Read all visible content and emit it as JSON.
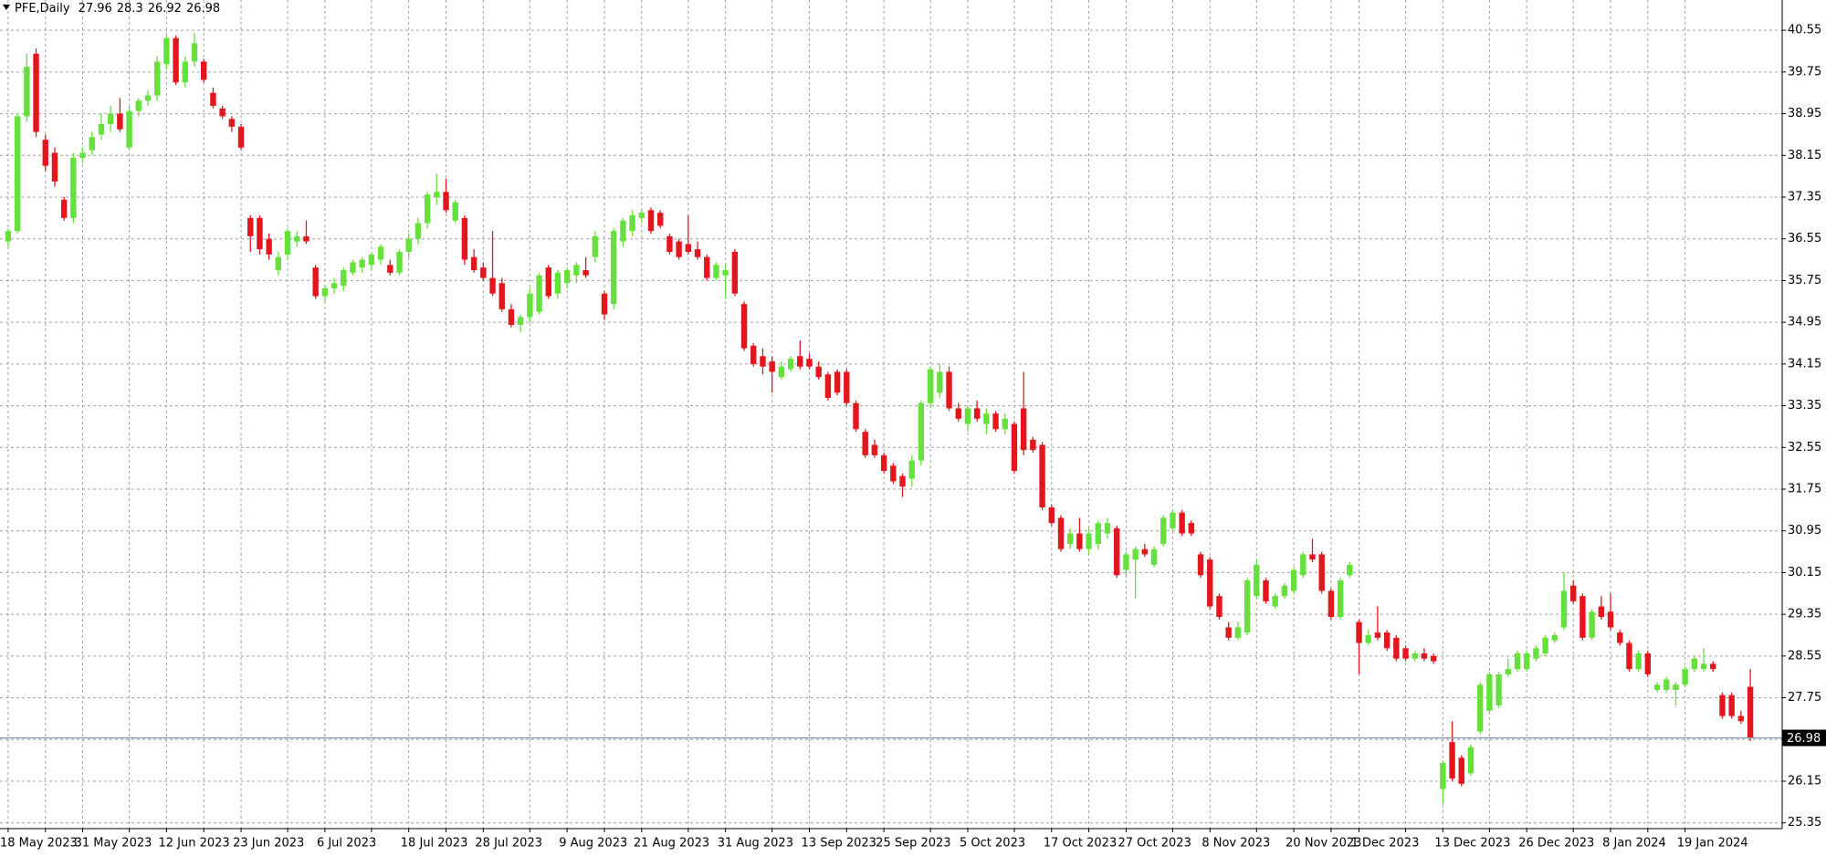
{
  "chart_data": {
    "type": "candlestick",
    "title": "PFE,Daily",
    "ylim": [
      25.24,
      41.13
    ],
    "yticks": [
      25.35,
      26.15,
      26.95,
      27.75,
      28.55,
      29.35,
      30.15,
      30.95,
      31.75,
      32.55,
      33.35,
      34.15,
      34.95,
      35.75,
      36.55,
      37.35,
      38.15,
      38.95,
      39.75,
      40.55
    ],
    "grid": true,
    "bull_color": "#66e03c",
    "bear_color": "#e3161e",
    "last_line_color": "#8a9ab0",
    "categories": [
      "18 May 2023",
      null,
      null,
      null,
      null,
      null,
      null,
      null,
      "31 May 2023",
      null,
      null,
      null,
      null,
      null,
      null,
      null,
      null,
      "12 Jun 2023",
      null,
      null,
      null,
      null,
      null,
      null,
      null,
      "23 Jun 2023",
      null,
      null,
      null,
      null,
      null,
      null,
      null,
      null,
      "6 Jul 2023",
      null,
      null,
      null,
      null,
      null,
      null,
      null,
      null,
      "18 Jul 2023",
      null,
      null,
      null,
      null,
      null,
      null,
      null,
      "28 Jul 2023",
      null,
      null,
      null,
      null,
      null,
      null,
      null,
      null,
      "9 Aug 2023",
      null,
      null,
      null,
      null,
      null,
      null,
      null,
      "21 Aug 2023",
      null,
      null,
      null,
      null,
      null,
      null,
      null,
      null,
      "31 Aug 2023",
      null,
      null,
      null,
      null,
      null,
      null,
      null,
      null,
      "13 Sep 2023",
      null,
      null,
      null,
      null,
      null,
      null,
      null,
      "25 Sep 2023",
      null,
      null,
      null,
      null,
      null,
      null,
      null,
      null,
      "5 Oct 2023",
      null,
      null,
      null,
      null,
      null,
      null,
      null,
      null,
      "17 Oct 2023",
      null,
      null,
      null,
      null,
      null,
      null,
      null,
      "27 Oct 2023",
      null,
      null,
      null,
      null,
      null,
      null,
      null,
      null,
      "8 Nov 2023",
      null,
      null,
      null,
      null,
      null,
      null,
      null,
      null,
      "20 Nov 2023",
      null,
      null,
      null,
      null,
      null,
      null,
      "1 Dec 2023",
      null,
      null,
      null,
      null,
      null,
      null,
      null,
      null,
      "13 Dec 2023",
      null,
      null,
      null,
      null,
      null,
      null,
      null,
      null,
      "26 Dec 2023",
      null,
      null,
      null,
      null,
      null,
      null,
      null,
      null,
      "8 Jan 2024",
      null,
      null,
      null,
      null,
      null,
      null,
      null,
      "19 Jan 2024",
      null,
      null,
      null,
      null,
      null,
      null,
      null
    ],
    "candles": [
      [
        36.5,
        36.75,
        36.4,
        36.7
      ],
      [
        36.7,
        38.95,
        36.65,
        38.9
      ],
      [
        38.9,
        40.1,
        38.8,
        39.85
      ],
      [
        40.1,
        40.2,
        38.5,
        38.6
      ],
      [
        38.45,
        38.55,
        37.85,
        37.95
      ],
      [
        38.2,
        38.3,
        37.55,
        37.65
      ],
      [
        37.3,
        37.35,
        36.9,
        36.95
      ],
      [
        36.95,
        38.2,
        36.85,
        38.1
      ],
      [
        38.1,
        38.3,
        38.0,
        38.2
      ],
      [
        38.25,
        38.6,
        38.15,
        38.5
      ],
      [
        38.55,
        38.95,
        38.45,
        38.75
      ],
      [
        38.75,
        39.1,
        38.6,
        38.95
      ],
      [
        38.95,
        39.25,
        38.6,
        38.65
      ],
      [
        38.3,
        39.1,
        38.25,
        39.0
      ],
      [
        39.0,
        39.25,
        38.9,
        39.2
      ],
      [
        39.2,
        39.4,
        39.1,
        39.3
      ],
      [
        39.3,
        40.05,
        39.2,
        39.95
      ],
      [
        39.9,
        40.45,
        39.8,
        40.4
      ],
      [
        40.4,
        40.45,
        39.5,
        39.55
      ],
      [
        39.55,
        40.05,
        39.45,
        39.95
      ],
      [
        39.95,
        40.5,
        39.85,
        40.3
      ],
      [
        39.95,
        40.0,
        39.55,
        39.6
      ],
      [
        39.35,
        39.45,
        39.05,
        39.1
      ],
      [
        39.05,
        39.1,
        38.85,
        38.9
      ],
      [
        38.85,
        38.9,
        38.6,
        38.7
      ],
      [
        38.7,
        38.75,
        38.25,
        38.3
      ],
      [
        36.95,
        37.0,
        36.3,
        36.6
      ],
      [
        36.95,
        37.0,
        36.25,
        36.35
      ],
      [
        36.55,
        36.65,
        36.15,
        36.25
      ],
      [
        35.95,
        36.3,
        35.85,
        36.2
      ],
      [
        36.25,
        36.75,
        36.15,
        36.7
      ],
      [
        36.5,
        36.7,
        36.4,
        36.6
      ],
      [
        36.6,
        36.9,
        36.45,
        36.5
      ],
      [
        36.0,
        36.05,
        35.4,
        35.45
      ],
      [
        35.45,
        35.65,
        35.35,
        35.6
      ],
      [
        35.6,
        35.8,
        35.5,
        35.7
      ],
      [
        35.65,
        36.0,
        35.55,
        35.95
      ],
      [
        35.9,
        36.15,
        35.85,
        36.1
      ],
      [
        36.0,
        36.2,
        35.9,
        36.15
      ],
      [
        36.05,
        36.3,
        35.95,
        36.25
      ],
      [
        36.15,
        36.45,
        36.05,
        36.4
      ],
      [
        36.05,
        36.15,
        35.85,
        35.9
      ],
      [
        35.9,
        36.35,
        35.85,
        36.3
      ],
      [
        36.3,
        36.65,
        36.2,
        36.55
      ],
      [
        36.55,
        36.95,
        36.45,
        36.85
      ],
      [
        36.85,
        37.45,
        36.75,
        37.4
      ],
      [
        37.35,
        37.8,
        37.2,
        37.45
      ],
      [
        37.45,
        37.7,
        37.05,
        37.1
      ],
      [
        36.9,
        37.3,
        36.85,
        37.25
      ],
      [
        36.95,
        37.0,
        36.05,
        36.15
      ],
      [
        36.2,
        36.35,
        35.9,
        35.95
      ],
      [
        36.0,
        36.1,
        35.75,
        35.8
      ],
      [
        35.8,
        36.7,
        35.45,
        35.5
      ],
      [
        35.7,
        35.8,
        35.15,
        35.2
      ],
      [
        35.2,
        35.3,
        34.85,
        34.9
      ],
      [
        34.9,
        35.1,
        34.75,
        35.05
      ],
      [
        35.05,
        35.6,
        34.95,
        35.5
      ],
      [
        35.15,
        35.9,
        35.1,
        35.85
      ],
      [
        36.0,
        36.05,
        35.4,
        35.45
      ],
      [
        35.5,
        35.95,
        35.4,
        35.9
      ],
      [
        35.7,
        36.0,
        35.6,
        35.95
      ],
      [
        35.85,
        36.1,
        35.7,
        36.05
      ],
      [
        35.95,
        36.2,
        35.8,
        35.85
      ],
      [
        36.2,
        36.7,
        36.1,
        36.6
      ],
      [
        35.5,
        35.55,
        35.0,
        35.1
      ],
      [
        35.3,
        36.75,
        35.2,
        36.7
      ],
      [
        36.5,
        36.95,
        36.4,
        36.9
      ],
      [
        36.7,
        37.1,
        36.6,
        37.0
      ],
      [
        36.95,
        37.1,
        36.85,
        37.05
      ],
      [
        37.1,
        37.15,
        36.65,
        36.7
      ],
      [
        37.05,
        37.1,
        36.75,
        36.8
      ],
      [
        36.6,
        36.65,
        36.25,
        36.3
      ],
      [
        36.5,
        36.55,
        36.15,
        36.2
      ],
      [
        36.45,
        37.0,
        36.25,
        36.3
      ],
      [
        36.35,
        36.5,
        36.15,
        36.2
      ],
      [
        36.2,
        36.25,
        35.75,
        35.8
      ],
      [
        35.8,
        36.1,
        35.75,
        36.05
      ],
      [
        35.85,
        36.05,
        35.4,
        35.95
      ],
      [
        36.3,
        36.35,
        35.45,
        35.5
      ],
      [
        35.3,
        35.35,
        34.4,
        34.45
      ],
      [
        34.5,
        34.55,
        34.1,
        34.15
      ],
      [
        34.3,
        34.45,
        33.95,
        34.1
      ],
      [
        34.2,
        34.3,
        33.6,
        34.0
      ],
      [
        33.9,
        34.2,
        33.85,
        34.1
      ],
      [
        34.05,
        34.3,
        34.0,
        34.25
      ],
      [
        34.3,
        34.6,
        34.05,
        34.1
      ],
      [
        34.25,
        34.35,
        34.05,
        34.1
      ],
      [
        34.1,
        34.2,
        33.85,
        33.9
      ],
      [
        33.95,
        34.0,
        33.45,
        33.5
      ],
      [
        34.0,
        34.05,
        33.55,
        33.6
      ],
      [
        34.0,
        34.05,
        33.35,
        33.4
      ],
      [
        33.4,
        33.45,
        32.85,
        32.9
      ],
      [
        32.85,
        32.9,
        32.35,
        32.4
      ],
      [
        32.6,
        32.7,
        32.35,
        32.4
      ],
      [
        32.4,
        32.45,
        32.05,
        32.1
      ],
      [
        32.2,
        32.25,
        31.85,
        31.9
      ],
      [
        32.0,
        32.05,
        31.6,
        31.8
      ],
      [
        31.95,
        32.4,
        31.8,
        32.3
      ],
      [
        32.3,
        33.45,
        32.2,
        33.4
      ],
      [
        33.4,
        34.1,
        33.3,
        34.05
      ],
      [
        33.6,
        34.15,
        33.5,
        34.0
      ],
      [
        34.0,
        34.1,
        33.25,
        33.3
      ],
      [
        33.3,
        33.4,
        33.05,
        33.1
      ],
      [
        33.0,
        33.35,
        32.85,
        33.3
      ],
      [
        33.3,
        33.45,
        33.05,
        33.1
      ],
      [
        33.0,
        33.3,
        32.8,
        33.2
      ],
      [
        33.2,
        33.25,
        32.85,
        32.9
      ],
      [
        32.9,
        33.2,
        32.8,
        33.1
      ],
      [
        33.0,
        33.05,
        32.05,
        32.1
      ],
      [
        33.3,
        34.0,
        32.4,
        32.5
      ],
      [
        32.7,
        32.75,
        32.45,
        32.5
      ],
      [
        32.6,
        32.65,
        31.35,
        31.4
      ],
      [
        31.4,
        31.45,
        31.05,
        31.1
      ],
      [
        31.2,
        31.25,
        30.55,
        30.6
      ],
      [
        30.7,
        31.0,
        30.6,
        30.9
      ],
      [
        30.9,
        31.2,
        30.55,
        30.6
      ],
      [
        30.6,
        31.0,
        30.5,
        30.9
      ],
      [
        30.7,
        31.15,
        30.6,
        31.1
      ],
      [
        30.9,
        31.2,
        30.8,
        31.1
      ],
      [
        31.0,
        31.05,
        30.05,
        30.1
      ],
      [
        30.2,
        30.55,
        30.1,
        30.5
      ],
      [
        30.4,
        30.65,
        29.65,
        30.6
      ],
      [
        30.6,
        30.7,
        30.45,
        30.5
      ],
      [
        30.3,
        30.65,
        30.25,
        30.6
      ],
      [
        30.7,
        31.25,
        30.65,
        31.2
      ],
      [
        31.0,
        31.35,
        30.95,
        31.3
      ],
      [
        31.3,
        31.35,
        30.85,
        30.9
      ],
      [
        31.1,
        31.15,
        30.85,
        30.9
      ],
      [
        30.5,
        30.55,
        30.05,
        30.1
      ],
      [
        30.4,
        30.45,
        29.45,
        29.5
      ],
      [
        29.7,
        29.75,
        29.25,
        29.3
      ],
      [
        29.1,
        29.2,
        28.85,
        28.9
      ],
      [
        28.9,
        29.2,
        28.85,
        29.1
      ],
      [
        29.0,
        30.05,
        28.95,
        30.0
      ],
      [
        29.7,
        30.4,
        29.65,
        30.3
      ],
      [
        30.0,
        30.05,
        29.55,
        29.6
      ],
      [
        29.5,
        29.75,
        29.45,
        29.7
      ],
      [
        29.7,
        29.95,
        29.65,
        29.9
      ],
      [
        29.8,
        30.25,
        29.75,
        30.2
      ],
      [
        30.1,
        30.55,
        30.05,
        30.5
      ],
      [
        30.5,
        30.8,
        30.35,
        30.4
      ],
      [
        30.5,
        30.55,
        29.75,
        29.8
      ],
      [
        29.8,
        29.85,
        29.25,
        29.3
      ],
      [
        29.3,
        30.05,
        29.25,
        30.0
      ],
      [
        30.1,
        30.35,
        30.05,
        30.3
      ],
      [
        29.2,
        29.25,
        28.2,
        28.8
      ],
      [
        28.8,
        29.05,
        28.75,
        28.95
      ],
      [
        29.0,
        29.5,
        28.85,
        28.9
      ],
      [
        29.0,
        29.05,
        28.65,
        28.7
      ],
      [
        28.9,
        28.95,
        28.45,
        28.5
      ],
      [
        28.7,
        28.75,
        28.45,
        28.5
      ],
      [
        28.5,
        28.65,
        28.45,
        28.6
      ],
      [
        28.6,
        28.7,
        28.45,
        28.5
      ],
      [
        28.55,
        28.6,
        28.4,
        28.45
      ],
      [
        26.0,
        26.55,
        25.7,
        26.5
      ],
      [
        26.9,
        27.3,
        26.15,
        26.2
      ],
      [
        26.6,
        26.65,
        26.05,
        26.1
      ],
      [
        26.3,
        26.85,
        26.25,
        26.8
      ],
      [
        27.1,
        28.05,
        27.05,
        28.0
      ],
      [
        27.5,
        28.25,
        27.45,
        28.2
      ],
      [
        27.6,
        28.25,
        27.55,
        28.2
      ],
      [
        28.2,
        28.5,
        28.15,
        28.3
      ],
      [
        28.3,
        28.65,
        28.25,
        28.6
      ],
      [
        28.3,
        28.65,
        28.25,
        28.6
      ],
      [
        28.5,
        28.75,
        28.45,
        28.7
      ],
      [
        28.6,
        28.95,
        28.55,
        28.9
      ],
      [
        28.85,
        29.0,
        28.8,
        28.95
      ],
      [
        29.1,
        30.15,
        29.05,
        29.8
      ],
      [
        29.9,
        30.0,
        29.55,
        29.6
      ],
      [
        29.7,
        29.75,
        28.85,
        28.9
      ],
      [
        28.9,
        29.45,
        28.85,
        29.4
      ],
      [
        29.5,
        29.7,
        29.25,
        29.3
      ],
      [
        29.4,
        29.75,
        29.05,
        29.1
      ],
      [
        29.0,
        29.05,
        28.75,
        28.8
      ],
      [
        28.8,
        28.85,
        28.25,
        28.3
      ],
      [
        28.3,
        28.65,
        28.25,
        28.6
      ],
      [
        28.6,
        28.65,
        28.15,
        28.2
      ],
      [
        27.9,
        28.05,
        27.85,
        28.0
      ],
      [
        27.9,
        28.15,
        27.85,
        28.1
      ],
      [
        27.9,
        28.05,
        27.6,
        28.0
      ],
      [
        28.0,
        28.35,
        27.95,
        28.3
      ],
      [
        28.3,
        28.55,
        28.25,
        28.5
      ],
      [
        28.3,
        28.7,
        28.25,
        28.4
      ],
      [
        28.4,
        28.45,
        28.25,
        28.3
      ],
      [
        27.8,
        27.85,
        27.35,
        27.4
      ],
      [
        27.8,
        27.85,
        27.35,
        27.4
      ],
      [
        27.4,
        27.5,
        27.25,
        27.3
      ],
      [
        27.96,
        28.3,
        26.92,
        26.98
      ]
    ]
  }
}
